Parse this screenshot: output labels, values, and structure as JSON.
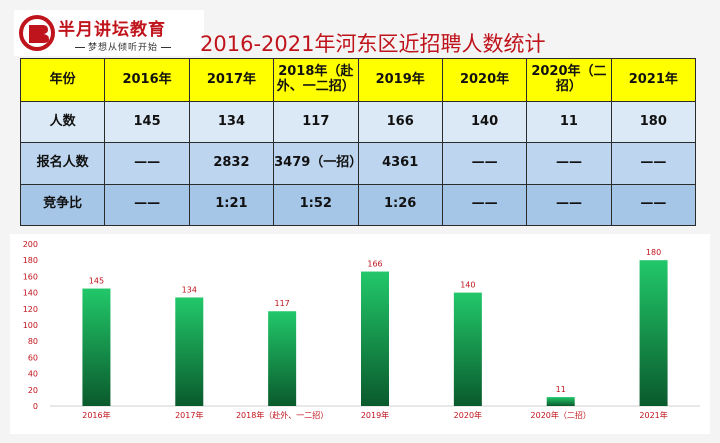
{
  "logo": {
    "brand": "半月讲坛教育",
    "slogan": "梦想从倾听开始"
  },
  "title": "2016-2021年河东区近招聘人数统计",
  "table": {
    "header": [
      "年份",
      "2016年",
      "2017年",
      "2018年（赴外、一二招）",
      "2019年",
      "2020年",
      "2020年（二招）",
      "2021年"
    ],
    "rows": [
      [
        "人数",
        "145",
        "134",
        "117",
        "166",
        "140",
        "11",
        "180"
      ],
      [
        "报名人数",
        "——",
        "2832",
        "3479（一招）",
        "4361",
        "——",
        "——",
        "——"
      ],
      [
        "竞争比",
        "——",
        "1:21",
        "1:52",
        "1:26",
        "——",
        "——",
        "——"
      ]
    ]
  },
  "chart_data": {
    "type": "bar",
    "categories": [
      "2016年",
      "2017年",
      "2018年（赴外、一二招）",
      "2019年",
      "2020年",
      "2020年（二招）",
      "2021年"
    ],
    "values": [
      145,
      134,
      117,
      166,
      140,
      11,
      180
    ],
    "ylim": [
      0,
      200
    ],
    "yticks": [
      0,
      20,
      40,
      60,
      80,
      100,
      120,
      140,
      160,
      180,
      200
    ],
    "grid": false,
    "data_labels": true,
    "colors": {
      "bar_top": "#22c86a",
      "bar_bottom": "#0a5a2c",
      "label": "#c0141c",
      "axis_text": "#c0141c"
    }
  }
}
